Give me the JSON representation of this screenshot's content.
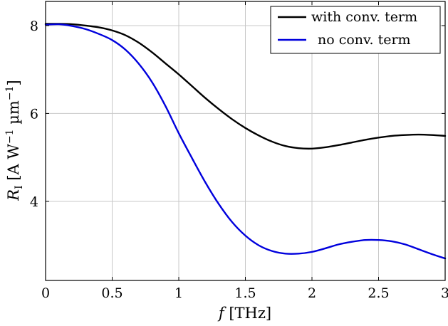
{
  "chart_data": {
    "type": "line",
    "xlabel": "f [THz]",
    "ylabel": "R_I [A W^-1 µm^-1]",
    "xlim": [
      0,
      3
    ],
    "ylim": [
      2.2,
      8.55
    ],
    "grid": true,
    "legend_position": "top-right",
    "x_ticks": [
      0,
      0.5,
      1,
      1.5,
      2,
      2.5,
      3
    ],
    "x_tick_labels": [
      "0",
      "0.5",
      "1",
      "1.5",
      "2",
      "2.5",
      "3"
    ],
    "y_ticks": [
      4,
      6,
      8
    ],
    "y_tick_labels": [
      "4",
      "6",
      "8"
    ],
    "series": [
      {
        "name": "with conv. term",
        "color": "#000000",
        "x": [
          0,
          0.1,
          0.2,
          0.3,
          0.4,
          0.5,
          0.6,
          0.7,
          0.8,
          0.9,
          1.0,
          1.1,
          1.2,
          1.3,
          1.4,
          1.5,
          1.6,
          1.7,
          1.8,
          1.9,
          2.0,
          2.1,
          2.2,
          2.3,
          2.4,
          2.5,
          2.6,
          2.7,
          2.8,
          2.9,
          3.0
        ],
        "y": [
          8.04,
          8.04,
          8.03,
          8.0,
          7.96,
          7.89,
          7.78,
          7.61,
          7.39,
          7.14,
          6.89,
          6.62,
          6.35,
          6.1,
          5.87,
          5.67,
          5.5,
          5.36,
          5.26,
          5.21,
          5.2,
          5.23,
          5.28,
          5.34,
          5.4,
          5.45,
          5.49,
          5.51,
          5.52,
          5.51,
          5.49
        ]
      },
      {
        "name": "no conv. term",
        "color": "#0000dd",
        "x": [
          0,
          0.1,
          0.2,
          0.3,
          0.4,
          0.5,
          0.6,
          0.7,
          0.8,
          0.9,
          1.0,
          1.1,
          1.2,
          1.3,
          1.4,
          1.5,
          1.6,
          1.7,
          1.8,
          1.9,
          2.0,
          2.1,
          2.2,
          2.3,
          2.4,
          2.5,
          2.6,
          2.7,
          2.8,
          2.9,
          3.0
        ],
        "y": [
          8.02,
          8.03,
          7.99,
          7.92,
          7.81,
          7.67,
          7.45,
          7.13,
          6.71,
          6.17,
          5.55,
          4.98,
          4.43,
          3.94,
          3.53,
          3.22,
          3.0,
          2.87,
          2.81,
          2.81,
          2.85,
          2.93,
          3.02,
          3.08,
          3.12,
          3.12,
          3.09,
          3.02,
          2.91,
          2.8,
          2.7
        ]
      }
    ]
  }
}
